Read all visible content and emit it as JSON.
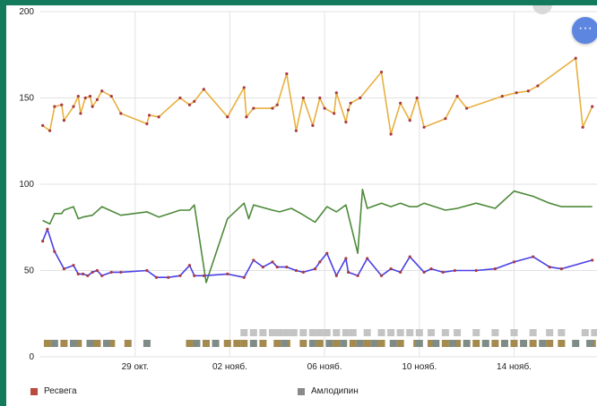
{
  "chart_data": {
    "type": "line",
    "title": "",
    "xlabel": "",
    "ylabel": "",
    "ylim": [
      0,
      200
    ],
    "yticks": [
      "0",
      "50",
      "100",
      "150",
      "200"
    ],
    "xlim": [
      25.0,
      48.5
    ],
    "xticks": [
      {
        "label": "29 окт.",
        "x": 29
      },
      {
        "label": "02 нояб.",
        "x": 33
      },
      {
        "label": "06 нояб.",
        "x": 37
      },
      {
        "label": "10 нояб.",
        "x": 41
      },
      {
        "label": "14 нояб.",
        "x": 45
      }
    ],
    "grid": true,
    "series": [
      {
        "color": "#e8b040",
        "markers": true,
        "points": [
          [
            25.1,
            134
          ],
          [
            25.4,
            131
          ],
          [
            25.6,
            145
          ],
          [
            25.9,
            146
          ],
          [
            26.0,
            137
          ],
          [
            26.4,
            145
          ],
          [
            26.6,
            151
          ],
          [
            26.7,
            141
          ],
          [
            26.9,
            150
          ],
          [
            27.1,
            151
          ],
          [
            27.2,
            145
          ],
          [
            27.4,
            149
          ],
          [
            27.6,
            154
          ],
          [
            28.0,
            151
          ],
          [
            28.4,
            141
          ],
          [
            29.5,
            135
          ],
          [
            29.6,
            140
          ],
          [
            30.0,
            139
          ],
          [
            30.9,
            150
          ],
          [
            31.3,
            146
          ],
          [
            31.5,
            148
          ],
          [
            31.9,
            155
          ],
          [
            32.9,
            139
          ],
          [
            33.6,
            156
          ],
          [
            33.7,
            139
          ],
          [
            34.0,
            144
          ],
          [
            34.8,
            144
          ],
          [
            35.0,
            146
          ],
          [
            35.4,
            164
          ],
          [
            35.8,
            131
          ],
          [
            36.1,
            150
          ],
          [
            36.5,
            134
          ],
          [
            36.8,
            150
          ],
          [
            37.0,
            144
          ],
          [
            37.4,
            141
          ],
          [
            37.5,
            153
          ],
          [
            37.9,
            136
          ],
          [
            38.0,
            143
          ],
          [
            38.1,
            147
          ],
          [
            38.5,
            150
          ],
          [
            39.4,
            165
          ],
          [
            39.8,
            129
          ],
          [
            40.2,
            147
          ],
          [
            40.6,
            137
          ],
          [
            40.9,
            150
          ],
          [
            41.2,
            133
          ],
          [
            42.1,
            138
          ],
          [
            42.6,
            151
          ],
          [
            43.0,
            144
          ],
          [
            44.5,
            151
          ],
          [
            45.1,
            153
          ],
          [
            45.6,
            154
          ],
          [
            46.0,
            157
          ],
          [
            47.6,
            173
          ],
          [
            47.9,
            133
          ],
          [
            48.3,
            145
          ]
        ]
      },
      {
        "color": "#4d8a3a",
        "markers": false,
        "points": [
          [
            25.1,
            79
          ],
          [
            25.4,
            77
          ],
          [
            25.6,
            83
          ],
          [
            25.9,
            83
          ],
          [
            26.0,
            85
          ],
          [
            26.4,
            87
          ],
          [
            26.6,
            80
          ],
          [
            26.8,
            81
          ],
          [
            27.2,
            82
          ],
          [
            27.6,
            87
          ],
          [
            28.4,
            82
          ],
          [
            29.5,
            84
          ],
          [
            30.0,
            81
          ],
          [
            30.9,
            85
          ],
          [
            31.3,
            85
          ],
          [
            31.5,
            88
          ],
          [
            32.0,
            43
          ],
          [
            32.9,
            80
          ],
          [
            33.6,
            89
          ],
          [
            33.8,
            80
          ],
          [
            34.0,
            88
          ],
          [
            34.8,
            85
          ],
          [
            35.1,
            84
          ],
          [
            35.6,
            86
          ],
          [
            36.0,
            83
          ],
          [
            36.6,
            78
          ],
          [
            37.1,
            87
          ],
          [
            37.5,
            84
          ],
          [
            37.9,
            88
          ],
          [
            38.4,
            60
          ],
          [
            38.6,
            97
          ],
          [
            38.8,
            86
          ],
          [
            39.4,
            89
          ],
          [
            39.8,
            87
          ],
          [
            40.2,
            89
          ],
          [
            40.6,
            87
          ],
          [
            40.9,
            87
          ],
          [
            41.2,
            89
          ],
          [
            42.1,
            85
          ],
          [
            42.6,
            86
          ],
          [
            43.4,
            89
          ],
          [
            44.2,
            86
          ],
          [
            45.0,
            96
          ],
          [
            45.8,
            93
          ],
          [
            46.5,
            89
          ],
          [
            47.0,
            87
          ],
          [
            48.3,
            87
          ]
        ]
      },
      {
        "color": "#4a3fe6",
        "markers": true,
        "points": [
          [
            25.1,
            67
          ],
          [
            25.3,
            74
          ],
          [
            25.6,
            61
          ],
          [
            26.0,
            51
          ],
          [
            26.4,
            53
          ],
          [
            26.6,
            48
          ],
          [
            26.8,
            48
          ],
          [
            27.0,
            47
          ],
          [
            27.2,
            49
          ],
          [
            27.4,
            50
          ],
          [
            27.6,
            47
          ],
          [
            28.0,
            49
          ],
          [
            28.4,
            49
          ],
          [
            29.5,
            50
          ],
          [
            29.9,
            46
          ],
          [
            30.4,
            46
          ],
          [
            30.9,
            47
          ],
          [
            31.3,
            53
          ],
          [
            31.5,
            47
          ],
          [
            31.9,
            47
          ],
          [
            32.9,
            48
          ],
          [
            33.6,
            46
          ],
          [
            34.0,
            56
          ],
          [
            34.4,
            52
          ],
          [
            34.8,
            55
          ],
          [
            35.0,
            52
          ],
          [
            35.4,
            52
          ],
          [
            35.8,
            50
          ],
          [
            36.1,
            49
          ],
          [
            36.6,
            51
          ],
          [
            36.8,
            55
          ],
          [
            37.1,
            60
          ],
          [
            37.5,
            47
          ],
          [
            37.9,
            57
          ],
          [
            38.0,
            49
          ],
          [
            38.4,
            47
          ],
          [
            38.8,
            57
          ],
          [
            39.4,
            47
          ],
          [
            39.8,
            51
          ],
          [
            40.2,
            49
          ],
          [
            40.6,
            58
          ],
          [
            41.2,
            49
          ],
          [
            41.5,
            51
          ],
          [
            42.0,
            49
          ],
          [
            42.5,
            50
          ],
          [
            43.4,
            50
          ],
          [
            44.2,
            51
          ],
          [
            45.0,
            55
          ],
          [
            45.8,
            58
          ],
          [
            46.5,
            52
          ],
          [
            47.0,
            51
          ],
          [
            48.3,
            56
          ]
        ]
      }
    ],
    "dose_markers": [
      {
        "row": "top",
        "color": "#c4c4c4",
        "x": [
          33.6,
          34.0,
          34.4,
          34.8,
          35.1,
          35.4,
          35.7,
          36.1,
          36.5,
          36.8,
          37.1,
          37.5,
          37.9,
          38.2,
          38.8,
          39.4,
          39.8,
          40.2,
          40.6,
          41.0,
          41.5,
          42.1,
          42.6,
          43.4,
          44.2,
          45.0,
          45.8,
          46.5,
          47.0,
          48.0,
          48.4
        ]
      },
      {
        "row": "bottom",
        "color": "#a48a4e",
        "x": [
          25.3,
          26.0,
          26.6,
          27.4,
          28.0,
          28.7,
          31.3,
          32.0,
          32.9,
          33.3,
          33.6,
          34.4,
          35.0,
          35.4,
          36.1,
          36.8,
          37.5,
          38.2,
          38.8,
          39.4,
          40.2,
          40.9,
          41.5,
          42.1,
          42.6,
          43.4,
          44.2,
          45.0,
          45.8,
          46.5,
          47.0,
          48.3
        ]
      },
      {
        "row": "bottom",
        "color": "#7f8c86",
        "x": [
          25.6,
          26.4,
          27.1,
          27.8,
          29.5,
          31.6,
          32.4,
          34.0,
          35.3,
          36.5,
          37.2,
          37.8,
          38.5,
          39.1,
          39.9,
          41.0,
          41.7,
          42.4,
          43.0,
          43.8,
          44.6,
          45.4,
          46.2,
          47.6,
          48.2
        ]
      }
    ]
  },
  "legend": [
    {
      "label": "Ресвега",
      "color": "#b84a3e"
    },
    {
      "label": "Амлодипин",
      "color": "#8a8a8a"
    }
  ],
  "fab": {
    "icon": "more-icon",
    "glyph": "···"
  }
}
